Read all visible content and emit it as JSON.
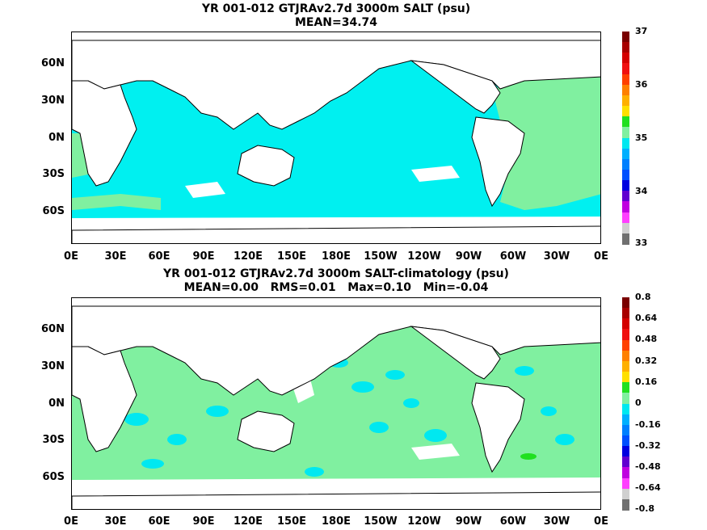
{
  "panel1": {
    "title": "YR 001-012 GTJRAv2.7d 3000m SALT (psu)",
    "subtitle": "MEAN=34.74",
    "colorbar_labels": [
      "37",
      "36",
      "35",
      "34",
      "33"
    ],
    "colorbar_colors": [
      "#7a0000",
      "#a80000",
      "#d40000",
      "#f01010",
      "#ff4000",
      "#ff8000",
      "#ffb000",
      "#ffe000",
      "#20e020",
      "#80f0a0",
      "#00e8f0",
      "#00b0ff",
      "#0080ff",
      "#0050ff",
      "#0000e0",
      "#6000d0",
      "#c000e0",
      "#ff40ff",
      "#d0d0d0",
      "#707070"
    ]
  },
  "panel2": {
    "title": "YR 001-012 GTJRAv2.7d 3000m SALT-climatology (psu)",
    "subtitle": "MEAN=0.00   RMS=0.01   Max=0.10   Min=-0.04",
    "colorbar_labels": [
      "0.8",
      "0.64",
      "0.48",
      "0.32",
      "0.16",
      "0",
      "-0.16",
      "-0.32",
      "-0.48",
      "-0.64",
      "-0.8"
    ],
    "colorbar_colors": [
      "#7a0000",
      "#a80000",
      "#d40000",
      "#f01010",
      "#ff4000",
      "#ff8000",
      "#ffb000",
      "#ffe000",
      "#20e020",
      "#80f0a0",
      "#00e8f0",
      "#00b0ff",
      "#0080ff",
      "#0050ff",
      "#0000e0",
      "#6000d0",
      "#c000e0",
      "#ff40ff",
      "#d0d0d0",
      "#707070"
    ]
  },
  "lat_labels": [
    "60N",
    "30N",
    "0N",
    "30S",
    "60S"
  ],
  "lon_labels": [
    "0E",
    "30E",
    "60E",
    "90E",
    "120E",
    "150E",
    "180E",
    "150W",
    "120W",
    "90W",
    "60W",
    "30W",
    "0E"
  ],
  "colors": {
    "land": "#ffffff",
    "coast": "#000000",
    "cyan": "#00f0f0",
    "green": "#80f0a0",
    "dark_green": "#20e020"
  }
}
